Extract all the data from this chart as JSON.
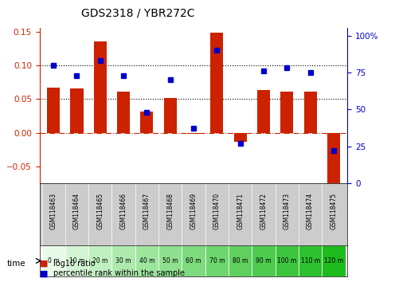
{
  "title": "GDS2318 / YBR272C",
  "samples": [
    "GSM118463",
    "GSM118464",
    "GSM118465",
    "GSM118466",
    "GSM118467",
    "GSM118468",
    "GSM118469",
    "GSM118470",
    "GSM118471",
    "GSM118472",
    "GSM118473",
    "GSM118474",
    "GSM118475"
  ],
  "time_labels": [
    "0 m",
    "10 m",
    "20 m",
    "30 m",
    "40 m",
    "50 m",
    "60 m",
    "70 m",
    "80 m",
    "90 m",
    "100 m",
    "110 m",
    "120 m"
  ],
  "log10_ratio": [
    0.067,
    0.066,
    0.135,
    0.061,
    0.031,
    0.051,
    -0.002,
    0.148,
    -0.013,
    0.063,
    0.061,
    0.061,
    -0.075
  ],
  "percentile_rank": [
    80,
    73,
    83,
    73,
    48,
    70,
    37,
    90,
    27,
    76,
    78,
    75,
    22
  ],
  "bar_color": "#cc2200",
  "dot_color": "#0000cc",
  "left_ylim": [
    -0.075,
    0.155
  ],
  "right_ylim": [
    0,
    105
  ],
  "left_yticks": [
    -0.05,
    0.0,
    0.05,
    0.1,
    0.15
  ],
  "right_yticks": [
    0,
    25,
    50,
    75,
    100
  ],
  "hline_values": [
    0.05,
    0.1
  ],
  "background_color": "#ffffff",
  "time_row_colors": [
    "#ccffcc",
    "#ccffcc",
    "#ccffcc",
    "#aaffaa",
    "#aaffaa",
    "#aaffaa",
    "#88ee88",
    "#88ee88",
    "#88ee88",
    "#77dd77",
    "#55cc55",
    "#44bb44",
    "#33aa33"
  ],
  "cell_bg_color": "#cccccc"
}
